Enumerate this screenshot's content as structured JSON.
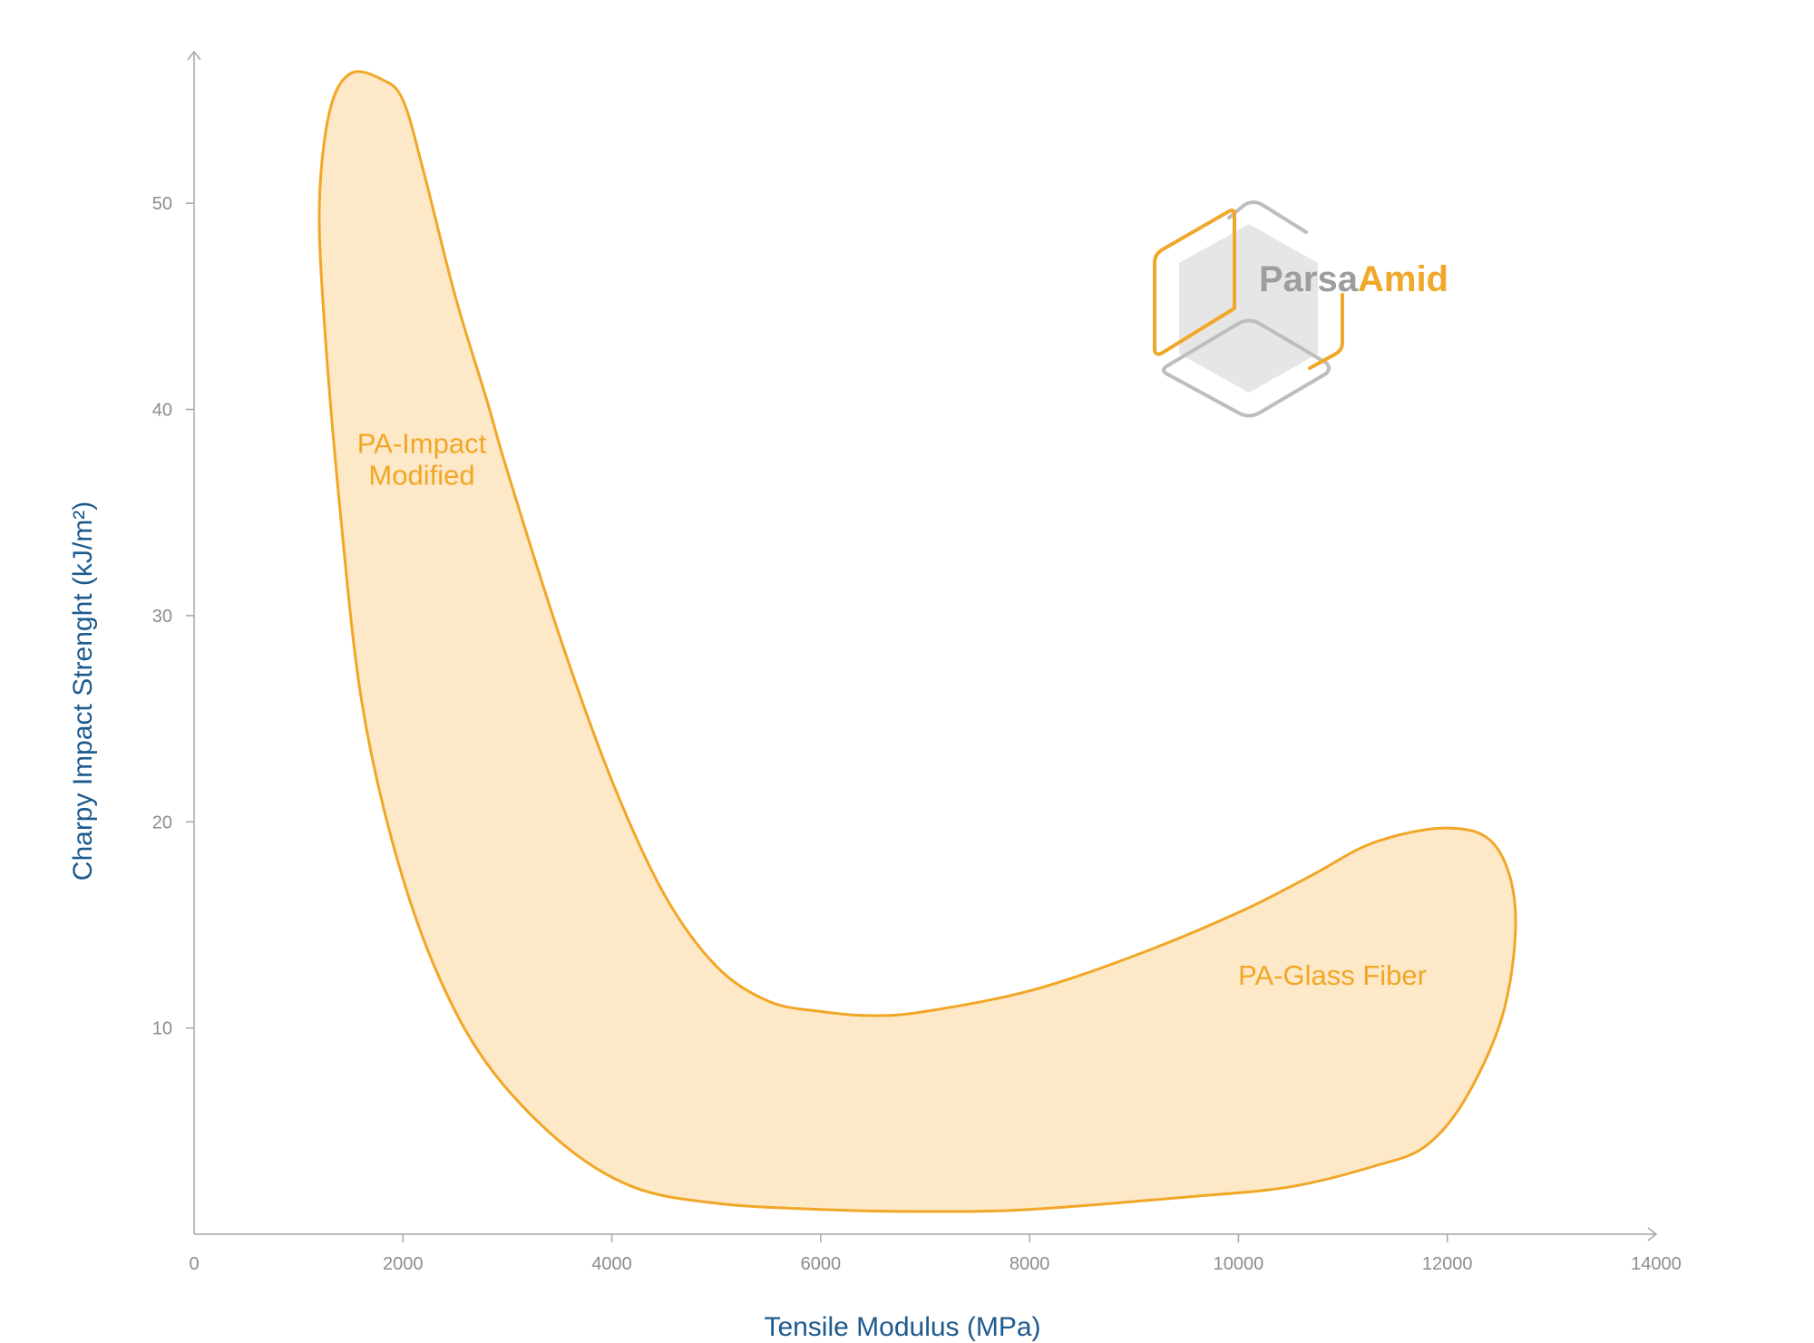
{
  "chart_data": {
    "type": "area",
    "xlabel": "Tensile Modulus (MPa)",
    "ylabel": "Charpy Impact Strenght (kJ/m²)",
    "xlim": [
      0,
      14000
    ],
    "ylim": [
      0,
      57
    ],
    "x_ticks": [
      0,
      2000,
      4000,
      6000,
      8000,
      10000,
      12000,
      14000
    ],
    "y_ticks": [
      10,
      20,
      30,
      40,
      50
    ],
    "grid": false,
    "region": {
      "fill_color": "#fde8c8",
      "stroke_color": "#f1a726",
      "outline": [
        [
          1800,
          56.0
        ],
        [
          2000,
          55.0
        ],
        [
          2200,
          51.5
        ],
        [
          2500,
          45.5
        ],
        [
          2800,
          40.5
        ],
        [
          3000,
          37.0
        ],
        [
          3500,
          29.0
        ],
        [
          4000,
          22.0
        ],
        [
          4500,
          16.5
        ],
        [
          5000,
          13.0
        ],
        [
          5500,
          11.3
        ],
        [
          6000,
          10.8
        ],
        [
          6500,
          10.6
        ],
        [
          7000,
          10.8
        ],
        [
          8000,
          11.8
        ],
        [
          9000,
          13.5
        ],
        [
          10000,
          15.6
        ],
        [
          10700,
          17.4
        ],
        [
          11300,
          19.0
        ],
        [
          12000,
          19.7
        ],
        [
          12450,
          18.9
        ],
        [
          12650,
          15.8
        ],
        [
          12550,
          11.0
        ],
        [
          12200,
          6.8
        ],
        [
          11800,
          4.3
        ],
        [
          11300,
          3.3
        ],
        [
          10500,
          2.3
        ],
        [
          9500,
          1.8
        ],
        [
          8000,
          1.2
        ],
        [
          7000,
          1.1
        ],
        [
          6000,
          1.2
        ],
        [
          5000,
          1.5
        ],
        [
          4200,
          2.3
        ],
        [
          3500,
          4.5
        ],
        [
          2800,
          8.3
        ],
        [
          2300,
          13.0
        ],
        [
          1900,
          19.0
        ],
        [
          1600,
          26.0
        ],
        [
          1400,
          35.0
        ],
        [
          1250,
          44.0
        ],
        [
          1200,
          50.0
        ],
        [
          1300,
          54.5
        ],
        [
          1500,
          56.3
        ]
      ]
    },
    "annotations": [
      {
        "lines": [
          "PA-Impact",
          "Modified"
        ],
        "x": 2180,
        "y": 37.9
      },
      {
        "lines": [
          "PA-Glass Fiber"
        ],
        "x": 10900,
        "y": 12.1
      }
    ],
    "series": [
      {
        "name": "PA-Impact Modified"
      },
      {
        "name": "PA-Glass Fiber"
      }
    ]
  },
  "logo": {
    "part1": "Parsa",
    "part2": "Amid",
    "gray_color": "#9d9d9d",
    "orange_color": "#f0a82a"
  }
}
